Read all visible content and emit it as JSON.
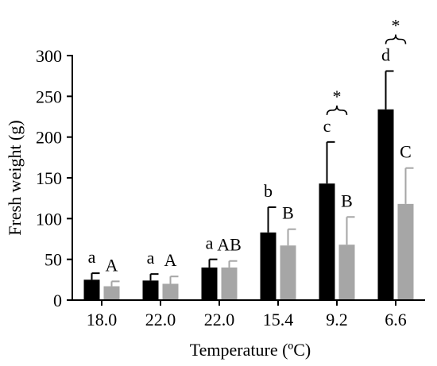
{
  "chart_data": {
    "type": "bar",
    "title": "",
    "xlabel": "Temperature (ºC)",
    "ylabel": "Fresh weight (g)",
    "ylim": [
      0,
      300
    ],
    "yticks": [
      0,
      50,
      100,
      150,
      200,
      250,
      300
    ],
    "categories": [
      "18.0",
      "22.0",
      "22.0",
      "15.4",
      "9.2",
      "6.6"
    ],
    "grid": false,
    "legend": "none",
    "series": [
      {
        "color": "#000000",
        "values": [
          25,
          24,
          40,
          83,
          143,
          234
        ],
        "errors": [
          8,
          8,
          10,
          31,
          51,
          47
        ],
        "letters": [
          "a",
          "a",
          "a",
          "b",
          "c",
          "d"
        ]
      },
      {
        "color": "#a6a6a6",
        "values": [
          17,
          20,
          40,
          67,
          68,
          118
        ],
        "errors": [
          6,
          9,
          8,
          20,
          34,
          44
        ],
        "letters": [
          "A",
          "A",
          "AB",
          "B",
          "B",
          "C"
        ]
      }
    ],
    "significance": [
      {
        "category_index": 4,
        "label": "*"
      },
      {
        "category_index": 5,
        "label": "*"
      }
    ]
  }
}
